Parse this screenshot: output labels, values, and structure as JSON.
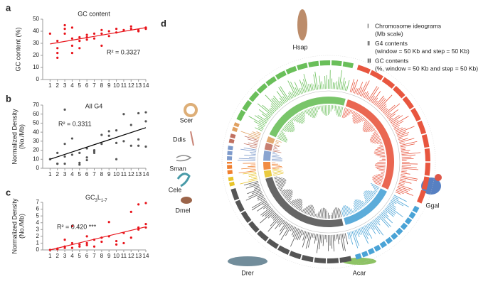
{
  "panel_labels": [
    "a",
    "b",
    "c",
    "d"
  ],
  "chart_data": [
    {
      "type": "scatter",
      "title": "GC content",
      "ylabel": [
        "GC content (%)"
      ],
      "annotation": "R² = 0.3327",
      "color": "#e8141b",
      "fit_color": "#e8141b",
      "xlim": [
        0,
        14
      ],
      "xticks": [
        1,
        2,
        3,
        4,
        5,
        6,
        7,
        8,
        9,
        10,
        11,
        12,
        13,
        14
      ],
      "ylim": [
        0,
        50
      ],
      "yticks": [
        0,
        10,
        20,
        30,
        40,
        50
      ],
      "x": [
        1,
        2,
        2,
        2,
        2,
        3,
        3,
        3,
        4,
        4,
        4,
        4,
        5,
        5,
        5,
        6,
        6,
        6,
        7,
        7,
        8,
        8,
        8,
        9,
        9,
        10,
        10,
        11,
        12,
        12,
        13,
        13,
        14,
        14
      ],
      "y": [
        38,
        22,
        18,
        26,
        32,
        45,
        42,
        38,
        43,
        28,
        34,
        22,
        35,
        32,
        26,
        37,
        33,
        35,
        34,
        38,
        41,
        38,
        28,
        40,
        36,
        39,
        42,
        41,
        42,
        44,
        41,
        40,
        43,
        42
      ],
      "fit": {
        "x": [
          1,
          14
        ],
        "y": [
          29.5,
          43
        ]
      }
    },
    {
      "type": "scatter",
      "title": "All G4",
      "ylabel": [
        "Normalized Density",
        "(No./Mb)"
      ],
      "annotation": "R² = 0.3311",
      "color": "#555555",
      "fit_color": "#000000",
      "xlim": [
        0,
        14
      ],
      "xticks": [
        1,
        2,
        3,
        4,
        5,
        6,
        7,
        8,
        9,
        10,
        11,
        12,
        13,
        14
      ],
      "ylim": [
        0,
        70
      ],
      "yticks": [
        0,
        10,
        20,
        30,
        40,
        50,
        60,
        70
      ],
      "x": [
        1,
        2,
        2,
        2,
        3,
        3,
        3,
        3,
        4,
        4,
        5,
        5,
        5,
        6,
        6,
        6,
        7,
        7,
        7,
        8,
        8,
        9,
        9,
        10,
        10,
        10,
        11,
        11,
        12,
        12,
        13,
        13,
        13,
        14,
        14,
        14
      ],
      "y": [
        10,
        5,
        17,
        5,
        65,
        27,
        13,
        5,
        33,
        15,
        17,
        6,
        4,
        22,
        12,
        9,
        19,
        17,
        20,
        27,
        37,
        41,
        36,
        42,
        28,
        10,
        60,
        30,
        48,
        25,
        61,
        32,
        25,
        62,
        52,
        24
      ],
      "fit": {
        "x": [
          1,
          14
        ],
        "y": [
          10,
          45
        ]
      }
    },
    {
      "type": "scatter",
      "title_parts": [
        "GC",
        "3",
        "L",
        "1-7"
      ],
      "ylabel": [
        "Normalized Density",
        "(No./Mb)"
      ],
      "annotation": "R² = 0.420 ***",
      "color": "#e8141b",
      "fit_color": "#e8141b",
      "xlim": [
        0,
        14
      ],
      "xticks": [
        1,
        2,
        3,
        4,
        5,
        6,
        7,
        8,
        9,
        10,
        11,
        12,
        13,
        14
      ],
      "ylim": [
        0,
        7
      ],
      "yticks": [
        0,
        1,
        2,
        3,
        4,
        5,
        6,
        7
      ],
      "x": [
        1,
        2,
        2,
        3,
        3,
        3,
        4,
        4,
        4,
        5,
        5,
        6,
        6,
        6,
        7,
        7,
        8,
        8,
        9,
        9,
        10,
        10,
        11,
        11,
        12,
        12,
        13,
        13,
        13,
        14,
        14,
        14
      ],
      "y": [
        0,
        0.2,
        0.1,
        1.5,
        0.5,
        0.3,
        3.5,
        1.0,
        0.3,
        0.8,
        0.5,
        2.0,
        1.0,
        0.7,
        1.5,
        0.5,
        1.8,
        1.2,
        4.1,
        2.0,
        1.3,
        0.8,
        2.5,
        1.0,
        5.6,
        1.8,
        6.7,
        3.3,
        3.0,
        6.9,
        3.8,
        3.3
      ],
      "fit": {
        "x": [
          1,
          14
        ],
        "y": [
          0,
          3.4
        ]
      }
    }
  ],
  "circos": {
    "legend": [
      {
        "numeral": "Ⅰ",
        "lines": [
          "Chromosome ideograms",
          "(Mb scale)"
        ]
      },
      {
        "numeral": "Ⅱ",
        "lines": [
          "G4 contents",
          "(window = 50 Kb and step = 50 Kb)"
        ]
      },
      {
        "numeral": "Ⅲ",
        "lines": [
          "GC contents",
          "(%, window = 50 Kb and step = 50 Kb)"
        ]
      }
    ],
    "species": [
      {
        "name": "Hsap",
        "color": "#6abf5a"
      },
      {
        "name": "Ggal",
        "color": "#e8563f"
      },
      {
        "name": "Acar",
        "color": "#4aa3d6"
      },
      {
        "name": "Drer",
        "color": "#555555"
      },
      {
        "name": "Dmel",
        "color": "#e8c42a"
      },
      {
        "name": "Cele",
        "color": "#f08030"
      },
      {
        "name": "Sman",
        "color": "#7d9acb"
      },
      {
        "name": "Ddis",
        "color": "#c07060"
      },
      {
        "name": "Scer",
        "color": "#e0a060"
      }
    ]
  }
}
